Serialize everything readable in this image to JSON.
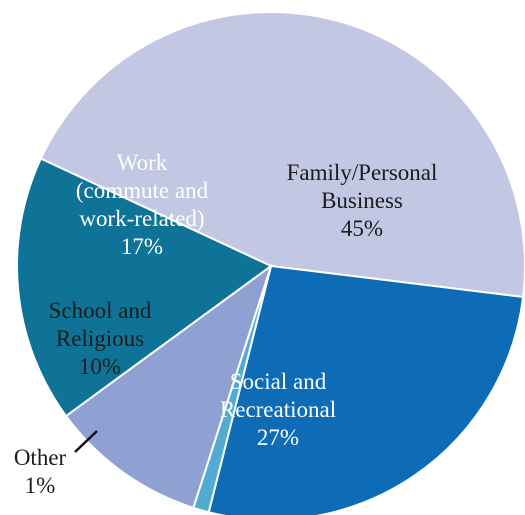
{
  "chart_data": {
    "type": "pie",
    "title": "",
    "start_angle_deg": 295,
    "direction": "clockwise",
    "slices": [
      {
        "key": "family",
        "label_lines": [
          "Family/Personal",
          "Business",
          "45%"
        ],
        "value": 45,
        "color": "#c2c8e3",
        "text_color": "#1b1b1b"
      },
      {
        "key": "social",
        "label_lines": [
          "Social and",
          "Recreational",
          "27%"
        ],
        "value": 27,
        "color": "#0e6bb6",
        "text_color": "#ffffff"
      },
      {
        "key": "other",
        "label_lines": [
          "Other",
          "1%"
        ],
        "value": 1,
        "color": "#51acd2",
        "text_color": "#1b1b1b"
      },
      {
        "key": "school",
        "label_lines": [
          "School and",
          "Religious",
          "10%"
        ],
        "value": 10,
        "color": "#8fa0d2",
        "text_color": "#1b1b1b"
      },
      {
        "key": "work",
        "label_lines": [
          "Work",
          "(commute and",
          "work-related)",
          "17%"
        ],
        "value": 17,
        "color": "#0e7396",
        "text_color": "#ffffff"
      }
    ]
  }
}
